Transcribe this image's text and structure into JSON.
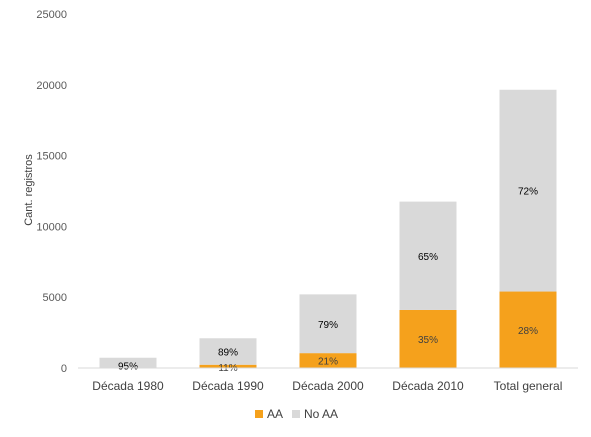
{
  "chart_data": {
    "type": "bar",
    "stacked": true,
    "title": "",
    "xlabel": "",
    "ylabel": "Cant. registros",
    "ylim": [
      0,
      25000
    ],
    "yticks": [
      0,
      5000,
      10000,
      15000,
      20000,
      25000
    ],
    "grid": false,
    "legend_position": "bottom",
    "categories": [
      "Década 1980",
      "Década 1990",
      "Década 2000",
      "Década 2010",
      "Total general"
    ],
    "series": [
      {
        "name": "AA",
        "color": "#F5A11C",
        "values": [
          35,
          230,
          1050,
          4100,
          5400
        ],
        "labels": [
          "",
          "11%",
          "21%",
          "35%",
          "28%"
        ]
      },
      {
        "name": "No AA",
        "color": "#D9D9D9",
        "values": [
          690,
          1870,
          4150,
          7650,
          14250
        ],
        "labels": [
          "95%",
          "89%",
          "79%",
          "65%",
          "72%"
        ]
      }
    ]
  }
}
